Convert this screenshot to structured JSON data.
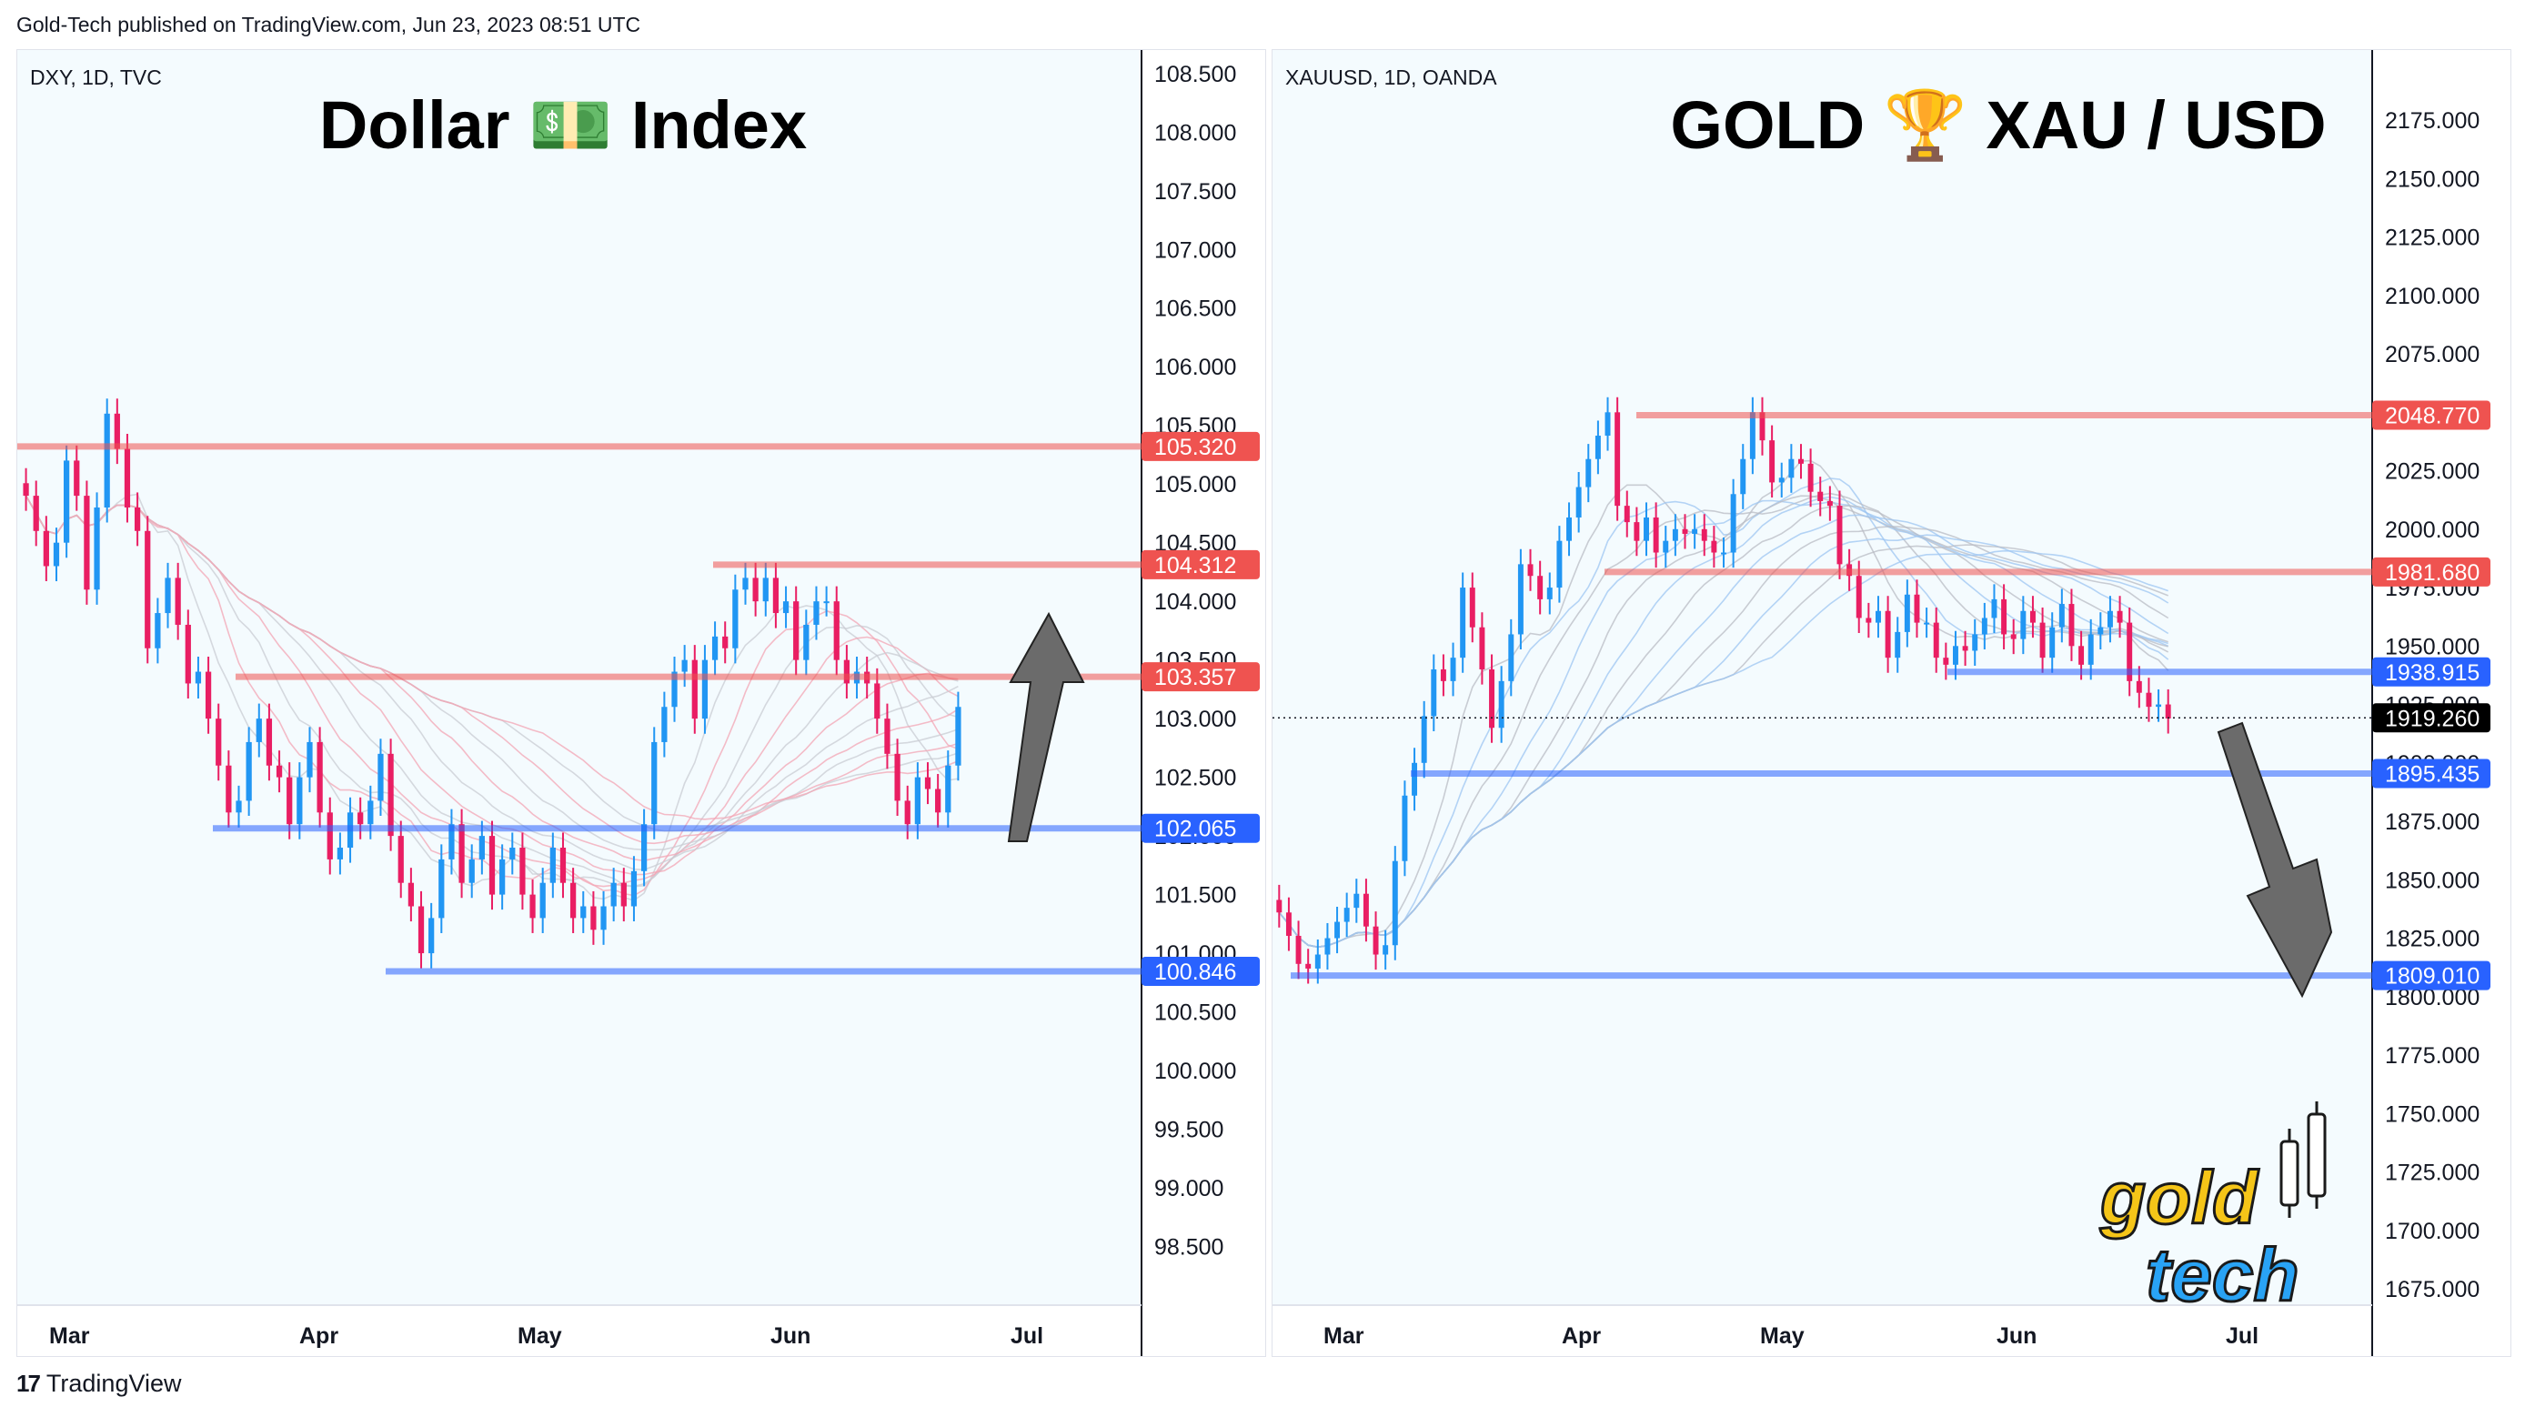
{
  "attribution": "Gold-Tech published on TradingView.com, Jun 23, 2023 08:51 UTC",
  "footer": {
    "brand": "TradingView",
    "logo_icon": "tradingview-logo-icon"
  },
  "colors": {
    "bg_tint": "#f4fbfe",
    "up": "#2196f3",
    "down": "#e91e63",
    "resistance": "#ef5350",
    "support": "#2962ff",
    "arrow": "#6b6b6b"
  },
  "watermark": {
    "line1": "gold",
    "line2": "tech",
    "icon": "candlestick-icon"
  },
  "chart_data": [
    {
      "type": "candlestick",
      "symbol_label": "DXY, 1D, TVC",
      "title": "Dollar 💵 Index",
      "ylim": [
        98.0,
        108.7
      ],
      "y_ticks": [
        "108.500",
        "108.000",
        "107.500",
        "107.000",
        "106.500",
        "106.000",
        "105.500",
        "105.000",
        "104.500",
        "104.000",
        "103.500",
        "103.000",
        "102.500",
        "102.000",
        "101.500",
        "101.000",
        "100.500",
        "100.000",
        "99.500",
        "99.000",
        "98.500"
      ],
      "x_ticks": [
        "Mar",
        "Apr",
        "May",
        "Jun",
        "Jul"
      ],
      "last_price_line": null,
      "levels": [
        {
          "label": "105.320",
          "value": 105.32,
          "kind": "resistance",
          "start": "Mar"
        },
        {
          "label": "104.312",
          "value": 104.312,
          "kind": "resistance",
          "start": "May 29"
        },
        {
          "label": "103.357",
          "value": 103.357,
          "kind": "resistance",
          "start": "Mar 23"
        },
        {
          "label": "102.065",
          "value": 102.065,
          "kind": "support",
          "start": "Mar 22"
        },
        {
          "label": "100.846",
          "value": 100.846,
          "kind": "support",
          "start": "Apr 13"
        }
      ],
      "arrow": "up",
      "candles_close": [
        104.9,
        104.6,
        104.3,
        104.5,
        105.2,
        104.9,
        104.1,
        104.8,
        105.6,
        105.3,
        104.8,
        104.6,
        103.6,
        103.9,
        104.2,
        103.8,
        103.3,
        103.4,
        103.0,
        102.6,
        102.2,
        102.3,
        102.8,
        103.0,
        102.6,
        102.5,
        102.1,
        102.5,
        102.8,
        102.2,
        101.8,
        101.9,
        102.2,
        102.1,
        102.3,
        102.7,
        102.0,
        101.6,
        101.4,
        101.0,
        101.3,
        101.8,
        102.1,
        101.6,
        101.8,
        102.0,
        101.5,
        101.8,
        101.9,
        101.5,
        101.3,
        101.6,
        101.9,
        101.6,
        101.3,
        101.4,
        101.2,
        101.4,
        101.6,
        101.4,
        101.7,
        102.1,
        102.8,
        103.1,
        103.4,
        103.5,
        103.0,
        103.5,
        103.7,
        103.6,
        104.1,
        104.2,
        104.0,
        104.2,
        103.9,
        104.0,
        103.5,
        103.8,
        104.0,
        104.0,
        103.5,
        103.3,
        103.4,
        103.3,
        103.0,
        102.7,
        102.3,
        102.1,
        102.5,
        102.4,
        102.2,
        102.6,
        103.1
      ]
    },
    {
      "type": "candlestick",
      "symbol_label": "XAUUSD, 1D, OANDA",
      "title": "GOLD 🏆 XAU / USD",
      "ylim": [
        1668,
        2205
      ],
      "y_ticks": [
        "2175.000",
        "2150.000",
        "2125.000",
        "2100.000",
        "2075.000",
        "2050.000",
        "2025.000",
        "2000.000",
        "1975.000",
        "1950.000",
        "1925.000",
        "1900.000",
        "1875.000",
        "1850.000",
        "1825.000",
        "1800.000",
        "1775.000",
        "1750.000",
        "1725.000",
        "1700.000",
        "1675.000"
      ],
      "x_ticks": [
        "Mar",
        "Apr",
        "May",
        "Jun",
        "Jul"
      ],
      "last_price": {
        "label": "1919.260",
        "value": 1919.26
      },
      "levels": [
        {
          "label": "2048.770",
          "value": 2048.77,
          "kind": "resistance",
          "start": "Apr 13"
        },
        {
          "label": "1981.680",
          "value": 1981.68,
          "kind": "resistance",
          "start": "Apr 13"
        },
        {
          "label": "1938.915",
          "value": 1938.915,
          "kind": "support",
          "start": "May 30"
        },
        {
          "label": "1895.435",
          "value": 1895.435,
          "kind": "support",
          "start": "Mar 15"
        },
        {
          "label": "1809.010",
          "value": 1809.01,
          "kind": "support",
          "start": "Mar 1"
        }
      ],
      "arrow": "down",
      "candles_close": [
        1836,
        1826,
        1814,
        1812,
        1818,
        1825,
        1832,
        1838,
        1844,
        1830,
        1818,
        1822,
        1858,
        1886,
        1900,
        1920,
        1940,
        1935,
        1945,
        1975,
        1958,
        1940,
        1915,
        1935,
        1955,
        1985,
        1980,
        1970,
        1975,
        1995,
        2005,
        2018,
        2030,
        2040,
        2050,
        2010,
        2003,
        1995,
        2005,
        1990,
        1995,
        2000,
        1998,
        2000,
        1995,
        1990,
        1990,
        2015,
        2030,
        2050,
        2038,
        2020,
        2022,
        2030,
        2028,
        2016,
        2012,
        2010,
        1985,
        1980,
        1962,
        1960,
        1965,
        1945,
        1956,
        1972,
        1960,
        1960,
        1945,
        1942,
        1950,
        1948,
        1955,
        1962,
        1970,
        1955,
        1953,
        1965,
        1960,
        1945,
        1958,
        1968,
        1950,
        1942,
        1955,
        1958,
        1965,
        1960,
        1935,
        1930,
        1924,
        1925,
        1919
      ]
    }
  ]
}
